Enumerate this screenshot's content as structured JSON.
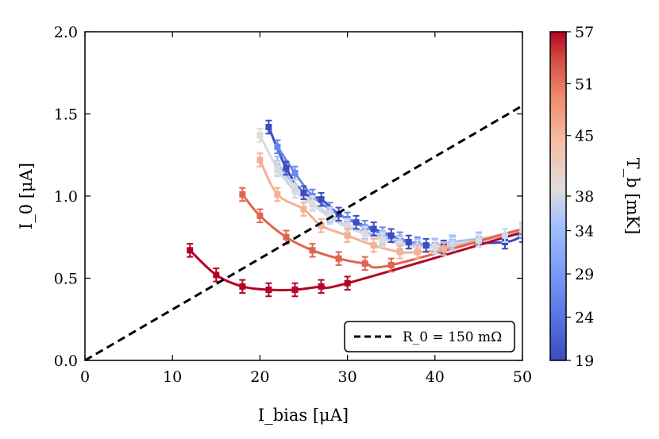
{
  "chart_data": {
    "type": "line",
    "xlabel": "I_bias [μA]",
    "ylabel": "I_0 [μA]",
    "xlim": [
      0,
      50
    ],
    "ylim": [
      0,
      2.0
    ],
    "xticks": [
      "0",
      "10",
      "20",
      "30",
      "40",
      "50"
    ],
    "yticks": [
      "0.0",
      "0.5",
      "1.0",
      "1.5",
      "2.0"
    ],
    "grid": false,
    "legend_position": "bottom-right",
    "colorbar": {
      "label": "T_b [mK]",
      "range": [
        19,
        57
      ],
      "ticks": [
        "19",
        "24",
        "29",
        "34",
        "38",
        "45",
        "51",
        "57"
      ],
      "colormap": "coolwarm"
    },
    "reference_line": {
      "label": "R_0 = 150 mΩ",
      "style": "dashed",
      "color": "#000000",
      "x": [
        0,
        50
      ],
      "y": [
        0,
        1.55
      ]
    },
    "series": [
      {
        "temperature_mK": 19,
        "color": "#3b4cc0",
        "x": [
          21,
          23,
          25,
          27,
          29,
          31,
          33,
          35,
          37,
          39,
          41,
          42,
          48,
          50
        ],
        "y": [
          1.42,
          1.17,
          1.02,
          0.98,
          0.89,
          0.84,
          0.8,
          0.76,
          0.72,
          0.7,
          0.69,
          0.71,
          0.72,
          0.76
        ],
        "errors": [
          0.04,
          0.04,
          0.04,
          0.04,
          0.04,
          0.04,
          0.04,
          0.04,
          0.04,
          0.04,
          0.04,
          0.04,
          0.04,
          0.04
        ]
      },
      {
        "temperature_mK": 24,
        "color": "#6688ee",
        "x": [
          22,
          24,
          26,
          28,
          30,
          32,
          34,
          36,
          38,
          40,
          42
        ],
        "y": [
          1.3,
          1.14,
          1.0,
          0.92,
          0.86,
          0.81,
          0.77,
          0.74,
          0.71,
          0.7,
          0.72
        ],
        "errors": [
          0.04,
          0.04,
          0.04,
          0.04,
          0.04,
          0.04,
          0.04,
          0.04,
          0.04,
          0.04,
          0.04
        ]
      },
      {
        "temperature_mK": 29,
        "color": "#9abbff",
        "x": [
          22,
          24,
          26,
          28,
          30,
          32,
          34,
          36,
          38,
          40,
          42,
          45,
          48
        ],
        "y": [
          1.2,
          1.06,
          0.96,
          0.88,
          0.82,
          0.78,
          0.75,
          0.72,
          0.7,
          0.7,
          0.72,
          0.74,
          0.76
        ],
        "errors": [
          0.04,
          0.04,
          0.04,
          0.04,
          0.04,
          0.04,
          0.04,
          0.04,
          0.04,
          0.04,
          0.04,
          0.04,
          0.04
        ]
      },
      {
        "temperature_mK": 34,
        "color": "#c9d7f0",
        "x": [
          22,
          24,
          26,
          28,
          30,
          32,
          34,
          36,
          38,
          40,
          42,
          45,
          48,
          50
        ],
        "y": [
          1.16,
          1.03,
          0.95,
          0.87,
          0.81,
          0.77,
          0.74,
          0.71,
          0.69,
          0.69,
          0.71,
          0.73,
          0.76,
          0.79
        ],
        "errors": [
          0.04,
          0.04,
          0.04,
          0.04,
          0.04,
          0.04,
          0.04,
          0.04,
          0.04,
          0.04,
          0.04,
          0.04,
          0.04,
          0.04
        ]
      },
      {
        "temperature_mK": 38,
        "color": "#dddcdc",
        "x": [
          20,
          22,
          24,
          26,
          28,
          30,
          32,
          34,
          36,
          38,
          40,
          45,
          50
        ],
        "y": [
          1.37,
          1.17,
          1.06,
          0.96,
          0.89,
          0.82,
          0.77,
          0.73,
          0.71,
          0.69,
          0.69,
          0.73,
          0.8
        ],
        "errors": [
          0.04,
          0.04,
          0.04,
          0.04,
          0.04,
          0.04,
          0.04,
          0.04,
          0.04,
          0.04,
          0.04,
          0.04,
          0.04
        ]
      },
      {
        "temperature_mK": 45,
        "color": "#f5b095",
        "x": [
          20,
          22,
          25,
          27,
          30,
          33,
          36,
          38,
          41
        ],
        "y": [
          1.22,
          1.01,
          0.92,
          0.82,
          0.76,
          0.7,
          0.66,
          0.66,
          0.68
        ],
        "errors": [
          0.04,
          0.04,
          0.04,
          0.04,
          0.04,
          0.04,
          0.04,
          0.04,
          0.04
        ]
      },
      {
        "temperature_mK": 51,
        "color": "#e0654f",
        "x": [
          18,
          20,
          23,
          26,
          29,
          32,
          35
        ],
        "y": [
          1.01,
          0.88,
          0.75,
          0.67,
          0.62,
          0.59,
          0.58
        ],
        "errors": [
          0.04,
          0.04,
          0.04,
          0.04,
          0.04,
          0.04,
          0.04
        ]
      },
      {
        "temperature_mK": 57,
        "color": "#b40426",
        "x": [
          12,
          15,
          18,
          21,
          24,
          27,
          30
        ],
        "y": [
          0.67,
          0.52,
          0.45,
          0.43,
          0.43,
          0.45,
          0.47
        ],
        "errors": [
          0.04,
          0.04,
          0.04,
          0.04,
          0.04,
          0.04,
          0.04
        ]
      }
    ],
    "fit_end": [
      {
        "temperature_mK": 19,
        "x": 50,
        "y": 0.76
      },
      {
        "temperature_mK": 24,
        "x": 50,
        "y": 0.77
      },
      {
        "temperature_mK": 29,
        "x": 50,
        "y": 0.78
      },
      {
        "temperature_mK": 34,
        "x": 50,
        "y": 0.79
      },
      {
        "temperature_mK": 38,
        "x": 50,
        "y": 0.8
      },
      {
        "temperature_mK": 45,
        "x": 50,
        "y": 0.8
      },
      {
        "temperature_mK": 51,
        "x": 50,
        "y": 0.8
      },
      {
        "temperature_mK": 57,
        "x": 50,
        "y": 0.78
      }
    ]
  }
}
